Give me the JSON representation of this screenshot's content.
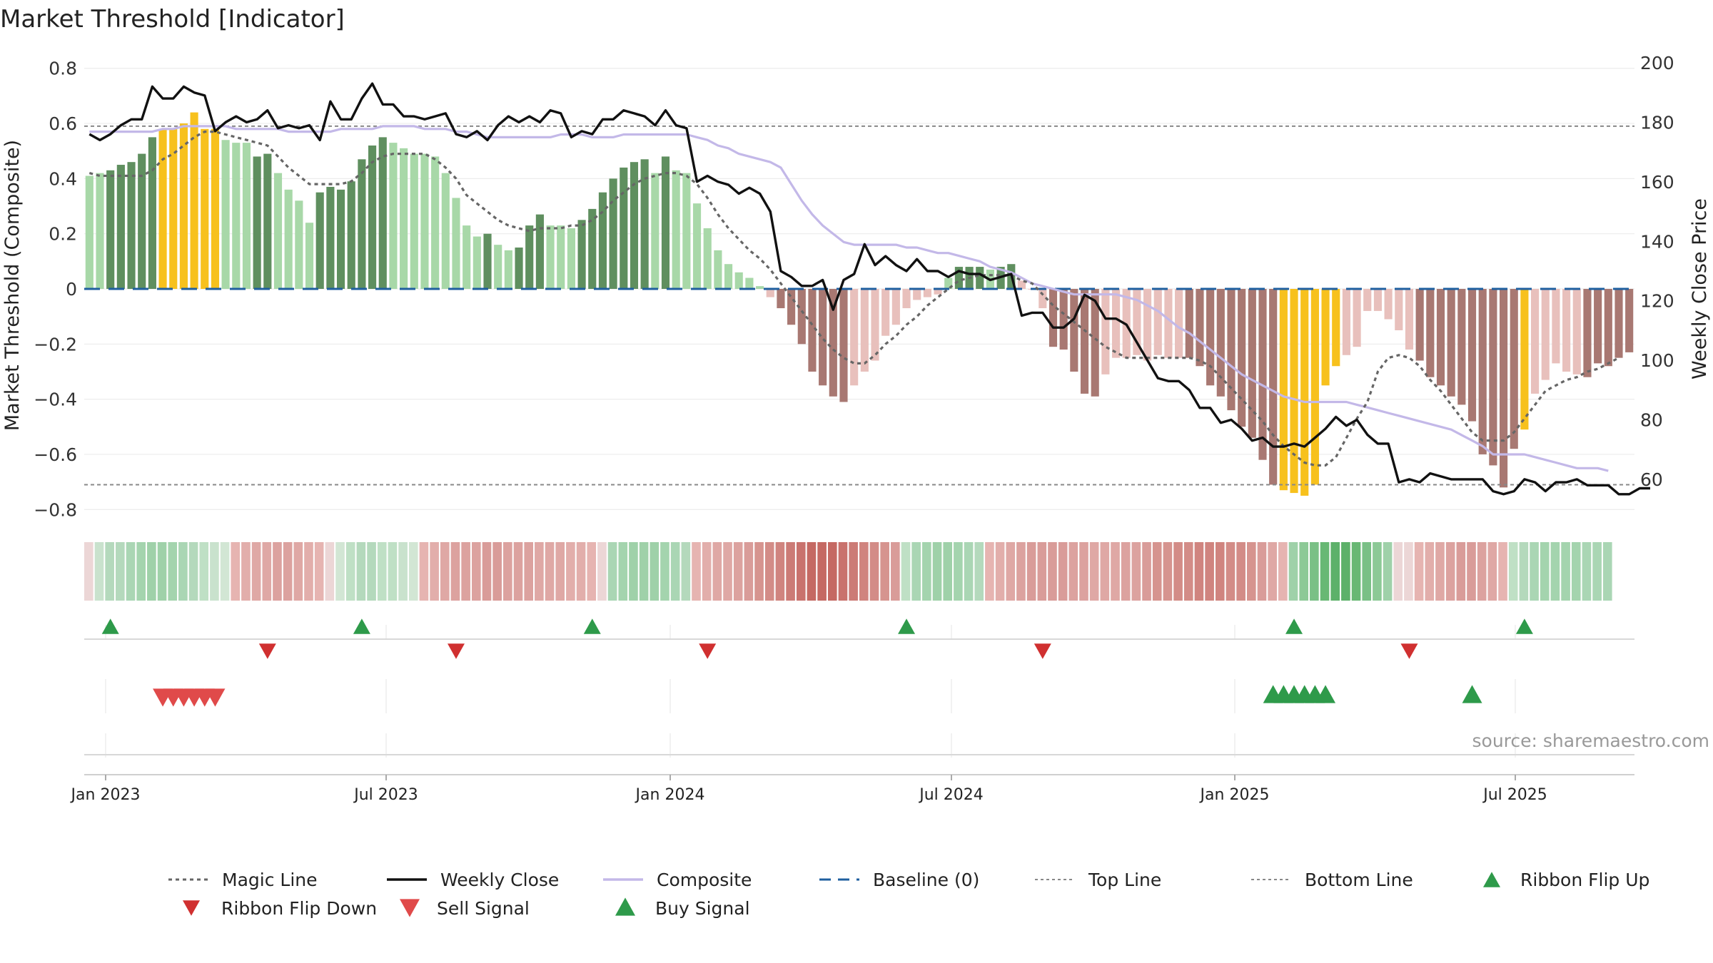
{
  "title": "Market Threshold [Indicator]",
  "source": "source: sharemaestro.com",
  "chart_data": {
    "type": "bar",
    "y_left_label": "Market Threshold (Composite)",
    "y_right_label": "Weekly Close Price",
    "y_left_range": [
      -0.82,
      0.82
    ],
    "y_right_range": [
      48,
      200
    ],
    "y_left_ticks": [
      "0.8",
      "0.6",
      "0.4",
      "0.2",
      "0",
      "−0.2",
      "−0.4",
      "−0.6",
      "−0.8"
    ],
    "y_right_ticks": [
      "200",
      "180",
      "160",
      "140",
      "120",
      "100",
      "80",
      "60"
    ],
    "x_ticks": [
      "Jan 2023",
      "Jul 2023",
      "Jan 2024",
      "Jul 2024",
      "Jan 2025",
      "Jul 2025"
    ],
    "top_line": 0.59,
    "bottom_line": -0.71,
    "composite_bars": [
      0.41,
      0.42,
      0.43,
      0.45,
      0.46,
      0.49,
      0.55,
      0.58,
      0.58,
      0.6,
      0.64,
      0.58,
      0.58,
      0.54,
      0.53,
      0.53,
      0.48,
      0.49,
      0.42,
      0.36,
      0.32,
      0.24,
      0.35,
      0.37,
      0.36,
      0.39,
      0.47,
      0.52,
      0.55,
      0.53,
      0.51,
      0.49,
      0.49,
      0.48,
      0.42,
      0.33,
      0.23,
      0.19,
      0.2,
      0.16,
      0.14,
      0.15,
      0.23,
      0.27,
      0.23,
      0.23,
      0.22,
      0.25,
      0.29,
      0.35,
      0.4,
      0.44,
      0.46,
      0.47,
      0.42,
      0.48,
      0.43,
      0.42,
      0.31,
      0.22,
      0.14,
      0.09,
      0.06,
      0.04,
      0.01,
      -0.03,
      -0.07,
      -0.13,
      -0.2,
      -0.3,
      -0.35,
      -0.39,
      -0.41,
      -0.35,
      -0.3,
      -0.26,
      -0.17,
      -0.13,
      -0.07,
      -0.04,
      -0.03,
      -0.02,
      0.04,
      0.08,
      0.08,
      0.08,
      0.07,
      0.08,
      0.09,
      0.03,
      0.0,
      -0.07,
      -0.21,
      -0.22,
      -0.3,
      -0.38,
      -0.39,
      -0.31,
      -0.25,
      -0.25,
      -0.24,
      -0.26,
      -0.24,
      -0.25,
      -0.25,
      -0.25,
      -0.28,
      -0.35,
      -0.39,
      -0.44,
      -0.5,
      -0.54,
      -0.62,
      -0.71,
      -0.73,
      -0.74,
      -0.75,
      -0.71,
      -0.35,
      -0.28,
      -0.24,
      -0.21,
      -0.08,
      -0.08,
      -0.11,
      -0.15,
      -0.22,
      -0.26,
      -0.32,
      -0.35,
      -0.39,
      -0.42,
      -0.48,
      -0.6,
      -0.64,
      -0.72,
      -0.58,
      -0.51,
      -0.38,
      -0.33,
      -0.27,
      -0.3,
      -0.31,
      -0.32,
      -0.27,
      -0.28,
      -0.25,
      -0.23
    ],
    "bar_colors": [
      "#a8d8a8",
      "#a8d8a8",
      "#5f8f5f",
      "#5f8f5f",
      "#5f8f5f",
      "#5f8f5f",
      "#5f8f5f",
      "#f7c11d",
      "#f7c11d",
      "#f7c11d",
      "#f7c11d",
      "#f7c11d",
      "#f7c11d",
      "#a8d8a8",
      "#a8d8a8",
      "#a8d8a8",
      "#5f8f5f",
      "#5f8f5f",
      "#a8d8a8",
      "#a8d8a8",
      "#a8d8a8",
      "#a8d8a8",
      "#5f8f5f",
      "#5f8f5f",
      "#5f8f5f",
      "#5f8f5f",
      "#5f8f5f",
      "#5f8f5f",
      "#5f8f5f",
      "#a8d8a8",
      "#a8d8a8",
      "#a8d8a8",
      "#a8d8a8",
      "#a8d8a8",
      "#a8d8a8",
      "#a8d8a8",
      "#a8d8a8",
      "#a8d8a8",
      "#5f8f5f",
      "#a8d8a8",
      "#a8d8a8",
      "#5f8f5f",
      "#5f8f5f",
      "#5f8f5f",
      "#a8d8a8",
      "#a8d8a8",
      "#a8d8a8",
      "#5f8f5f",
      "#5f8f5f",
      "#5f8f5f",
      "#5f8f5f",
      "#5f8f5f",
      "#5f8f5f",
      "#5f8f5f",
      "#a8d8a8",
      "#5f8f5f",
      "#a8d8a8",
      "#a8d8a8",
      "#a8d8a8",
      "#a8d8a8",
      "#a8d8a8",
      "#a8d8a8",
      "#a8d8a8",
      "#a8d8a8",
      "#a8d8a8",
      "#e8c0bc",
      "#a87872",
      "#a87872",
      "#a87872",
      "#a87872",
      "#a87872",
      "#a87872",
      "#a87872",
      "#e8c0bc",
      "#e8c0bc",
      "#e8c0bc",
      "#e8c0bc",
      "#e8c0bc",
      "#e8c0bc",
      "#e8c0bc",
      "#e8c0bc",
      "#e8c0bc",
      "#a8d8a8",
      "#5f8f5f",
      "#5f8f5f",
      "#5f8f5f",
      "#a8d8a8",
      "#5f8f5f",
      "#5f8f5f",
      "#e8c0bc",
      "#e8c0bc",
      "#e8c0bc",
      "#a87872",
      "#a87872",
      "#a87872",
      "#a87872",
      "#a87872",
      "#e8c0bc",
      "#e8c0bc",
      "#e8c0bc",
      "#e8c0bc",
      "#e8c0bc",
      "#e8c0bc",
      "#e8c0bc",
      "#e8c0bc",
      "#a87872",
      "#a87872",
      "#a87872",
      "#a87872",
      "#a87872",
      "#a87872",
      "#a87872",
      "#a87872",
      "#a87872",
      "#f7c11d",
      "#f7c11d",
      "#f7c11d",
      "#f7c11d",
      "#f7c11d",
      "#f7c11d",
      "#e8c0bc",
      "#e8c0bc",
      "#e8c0bc",
      "#e8c0bc",
      "#e8c0bc",
      "#e8c0bc",
      "#e8c0bc",
      "#a87872",
      "#a87872",
      "#a87872",
      "#a87872",
      "#a87872",
      "#a87872",
      "#a87872",
      "#a87872",
      "#a87872",
      "#a87872",
      "#f7c11d",
      "#e8c0bc",
      "#e8c0bc",
      "#e8c0bc",
      "#e8c0bc",
      "#e8c0bc",
      "#a87872",
      "#a87872",
      "#a87872",
      "#a87872",
      "#a87872",
      "#e8c0bc"
    ],
    "composite_line": [
      0.57,
      0.57,
      0.57,
      0.57,
      0.57,
      0.57,
      0.57,
      0.58,
      0.58,
      0.59,
      0.59,
      0.59,
      0.59,
      0.59,
      0.58,
      0.58,
      0.58,
      0.58,
      0.58,
      0.57,
      0.57,
      0.57,
      0.57,
      0.57,
      0.58,
      0.58,
      0.58,
      0.58,
      0.59,
      0.59,
      0.59,
      0.59,
      0.58,
      0.58,
      0.58,
      0.57,
      0.57,
      0.56,
      0.55,
      0.55,
      0.55,
      0.55,
      0.55,
      0.55,
      0.55,
      0.56,
      0.56,
      0.56,
      0.55,
      0.55,
      0.55,
      0.56,
      0.56,
      0.56,
      0.56,
      0.56,
      0.56,
      0.56,
      0.55,
      0.54,
      0.52,
      0.51,
      0.49,
      0.48,
      0.47,
      0.46,
      0.44,
      0.38,
      0.32,
      0.27,
      0.23,
      0.2,
      0.17,
      0.16,
      0.16,
      0.16,
      0.16,
      0.16,
      0.15,
      0.15,
      0.14,
      0.13,
      0.13,
      0.12,
      0.11,
      0.1,
      0.08,
      0.07,
      0.06,
      0.04,
      0.02,
      0.01,
      0.0,
      -0.01,
      -0.02,
      -0.02,
      -0.02,
      -0.02,
      -0.02,
      -0.03,
      -0.04,
      -0.06,
      -0.08,
      -0.11,
      -0.14,
      -0.16,
      -0.19,
      -0.22,
      -0.25,
      -0.28,
      -0.31,
      -0.33,
      -0.35,
      -0.37,
      -0.39,
      -0.4,
      -0.41,
      -0.41,
      -0.41,
      -0.41,
      -0.41,
      -0.42,
      -0.43,
      -0.44,
      -0.45,
      -0.46,
      -0.47,
      -0.48,
      -0.49,
      -0.5,
      -0.51,
      -0.53,
      -0.55,
      -0.57,
      -0.6,
      -0.6,
      -0.6,
      -0.6,
      -0.61,
      -0.62,
      -0.63,
      -0.64,
      -0.65,
      -0.65,
      -0.65,
      -0.66
    ],
    "magic_line": [
      0.42,
      0.41,
      0.41,
      0.41,
      0.41,
      0.41,
      0.43,
      0.47,
      0.49,
      0.52,
      0.55,
      0.57,
      0.57,
      0.56,
      0.55,
      0.54,
      0.53,
      0.52,
      0.48,
      0.44,
      0.41,
      0.38,
      0.38,
      0.38,
      0.38,
      0.39,
      0.42,
      0.46,
      0.48,
      0.49,
      0.49,
      0.49,
      0.49,
      0.47,
      0.44,
      0.4,
      0.34,
      0.31,
      0.28,
      0.25,
      0.23,
      0.22,
      0.21,
      0.22,
      0.22,
      0.22,
      0.23,
      0.23,
      0.25,
      0.28,
      0.32,
      0.35,
      0.38,
      0.4,
      0.41,
      0.42,
      0.42,
      0.41,
      0.38,
      0.33,
      0.27,
      0.22,
      0.18,
      0.14,
      0.11,
      0.07,
      0.02,
      -0.03,
      -0.08,
      -0.13,
      -0.18,
      -0.22,
      -0.25,
      -0.27,
      -0.27,
      -0.24,
      -0.2,
      -0.17,
      -0.13,
      -0.1,
      -0.06,
      -0.03,
      0.0,
      0.03,
      0.04,
      0.05,
      0.05,
      0.05,
      0.05,
      0.03,
      0.02,
      -0.02,
      -0.06,
      -0.09,
      -0.12,
      -0.15,
      -0.18,
      -0.21,
      -0.23,
      -0.25,
      -0.25,
      -0.25,
      -0.25,
      -0.25,
      -0.25,
      -0.25,
      -0.26,
      -0.28,
      -0.32,
      -0.36,
      -0.4,
      -0.44,
      -0.48,
      -0.53,
      -0.57,
      -0.6,
      -0.63,
      -0.64,
      -0.64,
      -0.61,
      -0.54,
      -0.47,
      -0.41,
      -0.3,
      -0.25,
      -0.24,
      -0.25,
      -0.28,
      -0.33,
      -0.37,
      -0.42,
      -0.47,
      -0.52,
      -0.55,
      -0.55,
      -0.55,
      -0.52,
      -0.47,
      -0.42,
      -0.37,
      -0.35,
      -0.33,
      -0.32,
      -0.3,
      -0.29,
      -0.27,
      -0.25
    ],
    "weekly_close": [
      176,
      174,
      176,
      179,
      181,
      181,
      192,
      188,
      188,
      192,
      190,
      189,
      177,
      180,
      182,
      180,
      181,
      184,
      178,
      179,
      178,
      179,
      174,
      187,
      181,
      181,
      188,
      193,
      186,
      186,
      182,
      182,
      181,
      182,
      183,
      176,
      175,
      177,
      174,
      179,
      182,
      180,
      182,
      180,
      184,
      183,
      175,
      177,
      176,
      181,
      181,
      184,
      183,
      182,
      179,
      184,
      179,
      178,
      160,
      162,
      160,
      159,
      156,
      158,
      156,
      150,
      130,
      128,
      125,
      125,
      127,
      117,
      127,
      129,
      139,
      132,
      135,
      132,
      130,
      134,
      130,
      130,
      128,
      130,
      129,
      129,
      127,
      128,
      129,
      115,
      116,
      116,
      111,
      111,
      114,
      122,
      120,
      114,
      114,
      112,
      106,
      100,
      94,
      93,
      93,
      90,
      84,
      84,
      79,
      80,
      77,
      73,
      74,
      71,
      71,
      72,
      71,
      74,
      77,
      81,
      78,
      80,
      75,
      72,
      72,
      59,
      60,
      59,
      62,
      61,
      60,
      60,
      60,
      60,
      56,
      55,
      56,
      60,
      59,
      56,
      59,
      59,
      60,
      58,
      58,
      58,
      55,
      55,
      57,
      57
    ],
    "ribbon_colors": [
      "#ecd6d6",
      "#c9e2cd",
      "#b4d9bc",
      "#b4d9bc",
      "#aad6b4",
      "#a4d4ae",
      "#9fd1a9",
      "#9fd1a9",
      "#a4d4ae",
      "#aad6b4",
      "#b4d9bc",
      "#bfe0c5",
      "#c9e2cd",
      "#d2e6d4",
      "#e6b4b1",
      "#e2aeab",
      "#dfa8a5",
      "#dfa8a5",
      "#dca29f",
      "#dca29f",
      "#dfa8a5",
      "#e2aeab",
      "#e6b4b1",
      "#ecd6d6",
      "#d2e6d4",
      "#bfe0c5",
      "#b4d9bc",
      "#b4d9bc",
      "#bfe0c5",
      "#bfe0c5",
      "#c9e2cd",
      "#d2e6d4",
      "#e6b4b1",
      "#e2aeab",
      "#dfa8a5",
      "#dca29f",
      "#dca29f",
      "#dca29f",
      "#d99c99",
      "#d99c99",
      "#dca29f",
      "#dca29f",
      "#dca29f",
      "#dfa8a5",
      "#dfa8a5",
      "#dfa8a5",
      "#e2aeab",
      "#e2aeab",
      "#e6b4b1",
      "#ecd6d6",
      "#aad6b4",
      "#a4d4ae",
      "#9fd1a9",
      "#9fd1a9",
      "#9fd1a9",
      "#a4d4ae",
      "#aad6b4",
      "#b4d9bc",
      "#e6b4b1",
      "#e2aeab",
      "#dfa8a5",
      "#dfa8a5",
      "#dca29f",
      "#d99c99",
      "#d6948f",
      "#d38c87",
      "#d0847f",
      "#cc7b76",
      "#c9726d",
      "#c56963",
      "#c56963",
      "#c56963",
      "#c9726d",
      "#cc7b76",
      "#d0847f",
      "#d38c87",
      "#d6948f",
      "#d99c99",
      "#bfe0c5",
      "#aad6b4",
      "#a4d4ae",
      "#9fd1a9",
      "#9fd1a9",
      "#a4d4ae",
      "#aad6b4",
      "#b4d9bc",
      "#e6b4b1",
      "#e2aeab",
      "#dfa8a5",
      "#dca29f",
      "#d99c99",
      "#d99c99",
      "#d99c99",
      "#d99c99",
      "#dca29f",
      "#dca29f",
      "#dfa8a5",
      "#dfa8a5",
      "#dfa8a5",
      "#dca29f",
      "#dca29f",
      "#d99c99",
      "#d6948f",
      "#d6948f",
      "#d38c87",
      "#d38c87",
      "#d0847f",
      "#d0847f",
      "#d0847f",
      "#d38c87",
      "#d38c87",
      "#d6948f",
      "#d99c99",
      "#dfa8a5",
      "#e6b4b1",
      "#9fd1a9",
      "#8cc996",
      "#7ac086",
      "#68b874",
      "#5db16a",
      "#5db16a",
      "#68b874",
      "#7ac086",
      "#8cc996",
      "#9fd1a9",
      "#ecd6d6",
      "#ecd6d6",
      "#e6b4b1",
      "#e2aeab",
      "#dfa8a5",
      "#dca29f",
      "#d99c99",
      "#d99c99",
      "#dca29f",
      "#dfa8a5",
      "#e6b4b1",
      "#bfe0c5",
      "#b4d9bc",
      "#aad6b4",
      "#a4d4ae",
      "#a4d4ae",
      "#a4d4ae",
      "#a4d4ae",
      "#aad6b4",
      "#aad6b4",
      "#aad6b4"
    ],
    "ribbon_flip_up_weeks": [
      2,
      26,
      48,
      78,
      115,
      137
    ],
    "ribbon_flip_down_weeks": [
      17,
      35,
      59,
      91,
      126
    ],
    "sell_signal_weeks": [
      7,
      8,
      9,
      10,
      11,
      12
    ],
    "buy_signal_weeks": [
      113,
      114,
      115,
      116,
      117,
      118,
      132
    ],
    "legend": [
      "Magic Line",
      "Weekly Close",
      "Composite",
      "Baseline (0)",
      "Top Line",
      "Bottom Line",
      "Ribbon Flip Up",
      "Ribbon Flip Down",
      "Sell Signal",
      "Buy Signal"
    ],
    "legend_placement": "bottom",
    "colors": {
      "green_dark": "#5f8f5f",
      "green_light": "#a8d8a8",
      "red_dark": "#a87872",
      "red_light": "#e8c0bc",
      "gold": "#f7c11d",
      "composite": "#c3b8e8",
      "close": "#111111",
      "magic": "#666666",
      "baseline": "#1f5f9f",
      "flip_up": "#2e9a4a",
      "flip_down": "#d03030",
      "sell": "#e04a4a",
      "buy": "#2e9a4a"
    }
  }
}
